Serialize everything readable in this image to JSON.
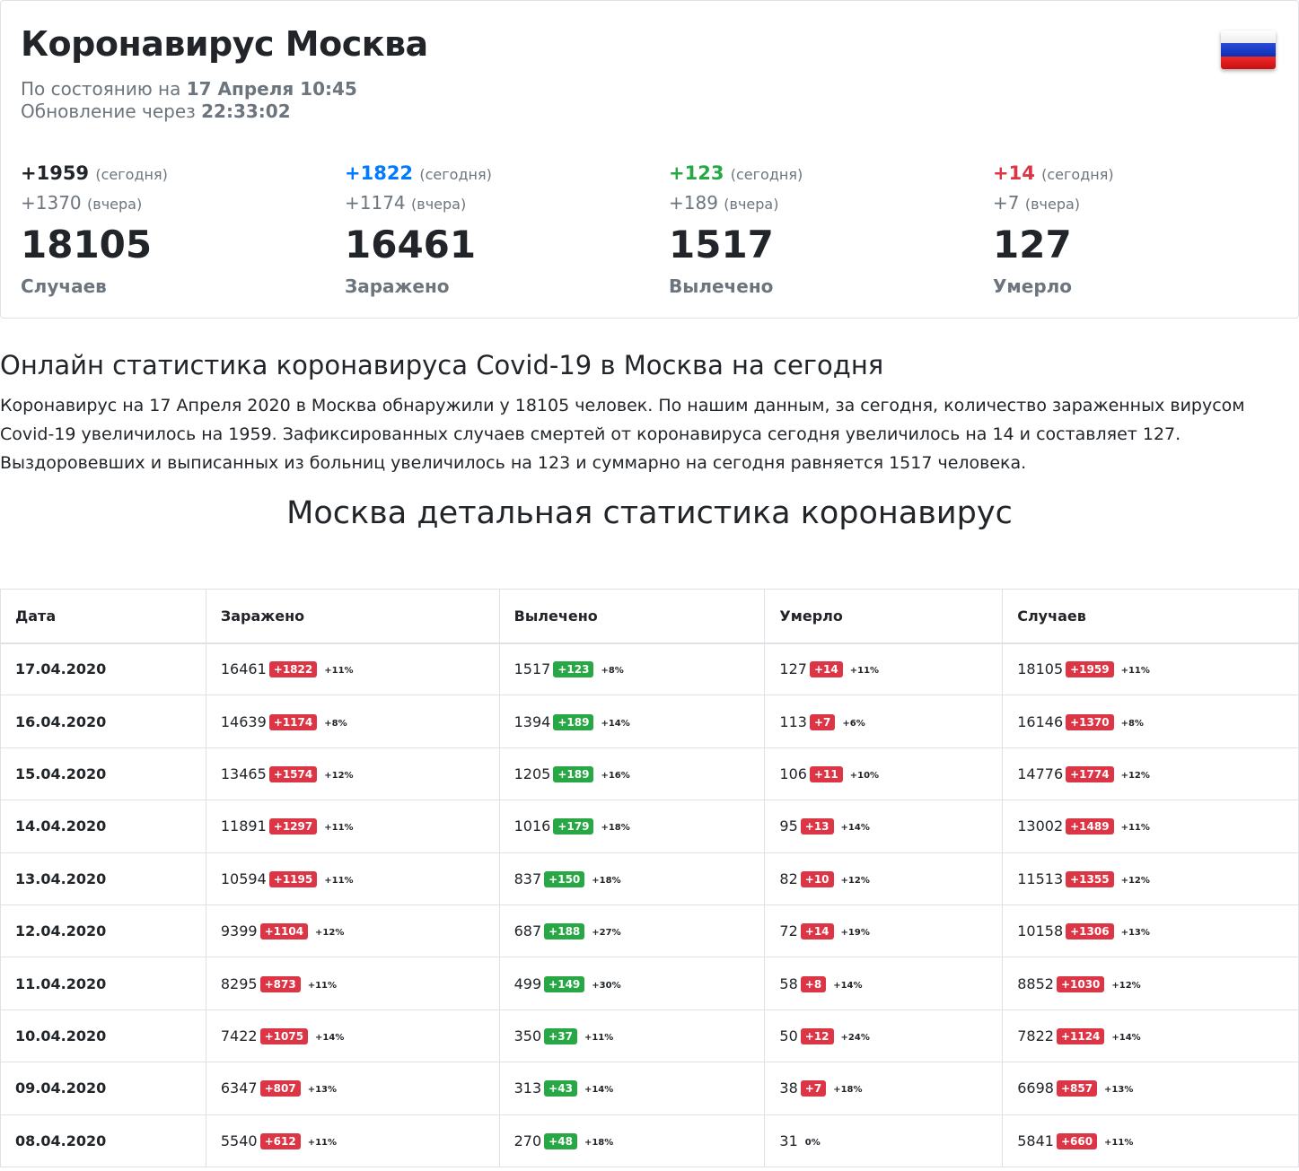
{
  "header": {
    "title": "Коронавирус Москва",
    "status_prefix": "По состоянию на",
    "status_date": "17 Апреля 10:45",
    "update_prefix": "Обновление через",
    "update_timer": "22:33:02",
    "flag_icon": "russia-flag-icon"
  },
  "stats": [
    {
      "today": "+1959",
      "today_label": "(сегодня)",
      "yesterday": "+1370",
      "yesterday_label": "(вчера)",
      "total": "18105",
      "name": "Случаев",
      "color": "#212529"
    },
    {
      "today": "+1822",
      "today_label": "(сегодня)",
      "yesterday": "+1174",
      "yesterday_label": "(вчера)",
      "total": "16461",
      "name": "Заражено",
      "color": "#007bff"
    },
    {
      "today": "+123",
      "today_label": "(сегодня)",
      "yesterday": "+189",
      "yesterday_label": "(вчера)",
      "total": "1517",
      "name": "Вылечено",
      "color": "#28a745"
    },
    {
      "today": "+14",
      "today_label": "(сегодня)",
      "yesterday": "+7",
      "yesterday_label": "(вчера)",
      "total": "127",
      "name": "Умерло",
      "color": "#dc3545"
    }
  ],
  "online": {
    "title": "Онлайн статистика коронавируса Covid-19 в Москва на сегодня",
    "text": "Коронавирус на 17 Апреля 2020 в Москва обнаружили у 18105 человек. По нашим данным, за сегодня, количество зараженных вирусом Covid-19 увеличилось на 1959. Зафиксированных случаев смертей от коронавируса сегодня увеличилось на 14 и составляет 127. Выздоровевших и выписанных из больниц увеличилось на 123 и суммарно на сегодня равняется 1517 человека."
  },
  "detail_title": "Москва детальная статистика коронавирус",
  "table": {
    "headers": [
      "Дата",
      "Заражено",
      "Вылечено",
      "Умерло",
      "Случаев"
    ],
    "rows": [
      {
        "date": "17.04.2020",
        "cells": [
          {
            "v": "16461",
            "d": "+1822",
            "p": "+11%",
            "c": "red"
          },
          {
            "v": "1517",
            "d": "+123",
            "p": "+8%",
            "c": "green"
          },
          {
            "v": "127",
            "d": "+14",
            "p": "+11%",
            "c": "red"
          },
          {
            "v": "18105",
            "d": "+1959",
            "p": "+11%",
            "c": "red"
          }
        ]
      },
      {
        "date": "16.04.2020",
        "cells": [
          {
            "v": "14639",
            "d": "+1174",
            "p": "+8%",
            "c": "red"
          },
          {
            "v": "1394",
            "d": "+189",
            "p": "+14%",
            "c": "green"
          },
          {
            "v": "113",
            "d": "+7",
            "p": "+6%",
            "c": "red"
          },
          {
            "v": "16146",
            "d": "+1370",
            "p": "+8%",
            "c": "red"
          }
        ]
      },
      {
        "date": "15.04.2020",
        "cells": [
          {
            "v": "13465",
            "d": "+1574",
            "p": "+12%",
            "c": "red"
          },
          {
            "v": "1205",
            "d": "+189",
            "p": "+16%",
            "c": "green"
          },
          {
            "v": "106",
            "d": "+11",
            "p": "+10%",
            "c": "red"
          },
          {
            "v": "14776",
            "d": "+1774",
            "p": "+12%",
            "c": "red"
          }
        ]
      },
      {
        "date": "14.04.2020",
        "cells": [
          {
            "v": "11891",
            "d": "+1297",
            "p": "+11%",
            "c": "red"
          },
          {
            "v": "1016",
            "d": "+179",
            "p": "+18%",
            "c": "green"
          },
          {
            "v": "95",
            "d": "+13",
            "p": "+14%",
            "c": "red"
          },
          {
            "v": "13002",
            "d": "+1489",
            "p": "+11%",
            "c": "red"
          }
        ]
      },
      {
        "date": "13.04.2020",
        "cells": [
          {
            "v": "10594",
            "d": "+1195",
            "p": "+11%",
            "c": "red"
          },
          {
            "v": "837",
            "d": "+150",
            "p": "+18%",
            "c": "green"
          },
          {
            "v": "82",
            "d": "+10",
            "p": "+12%",
            "c": "red"
          },
          {
            "v": "11513",
            "d": "+1355",
            "p": "+12%",
            "c": "red"
          }
        ]
      },
      {
        "date": "12.04.2020",
        "cells": [
          {
            "v": "9399",
            "d": "+1104",
            "p": "+12%",
            "c": "red"
          },
          {
            "v": "687",
            "d": "+188",
            "p": "+27%",
            "c": "green"
          },
          {
            "v": "72",
            "d": "+14",
            "p": "+19%",
            "c": "red"
          },
          {
            "v": "10158",
            "d": "+1306",
            "p": "+13%",
            "c": "red"
          }
        ]
      },
      {
        "date": "11.04.2020",
        "cells": [
          {
            "v": "8295",
            "d": "+873",
            "p": "+11%",
            "c": "red"
          },
          {
            "v": "499",
            "d": "+149",
            "p": "+30%",
            "c": "green"
          },
          {
            "v": "58",
            "d": "+8",
            "p": "+14%",
            "c": "red"
          },
          {
            "v": "8852",
            "d": "+1030",
            "p": "+12%",
            "c": "red"
          }
        ]
      },
      {
        "date": "10.04.2020",
        "cells": [
          {
            "v": "7422",
            "d": "+1075",
            "p": "+14%",
            "c": "red"
          },
          {
            "v": "350",
            "d": "+37",
            "p": "+11%",
            "c": "green"
          },
          {
            "v": "50",
            "d": "+12",
            "p": "+24%",
            "c": "red"
          },
          {
            "v": "7822",
            "d": "+1124",
            "p": "+14%",
            "c": "red"
          }
        ]
      },
      {
        "date": "09.04.2020",
        "cells": [
          {
            "v": "6347",
            "d": "+807",
            "p": "+13%",
            "c": "red"
          },
          {
            "v": "313",
            "d": "+43",
            "p": "+14%",
            "c": "green"
          },
          {
            "v": "38",
            "d": "+7",
            "p": "+18%",
            "c": "red"
          },
          {
            "v": "6698",
            "d": "+857",
            "p": "+13%",
            "c": "red"
          }
        ]
      },
      {
        "date": "08.04.2020",
        "cells": [
          {
            "v": "5540",
            "d": "+612",
            "p": "+11%",
            "c": "red"
          },
          {
            "v": "270",
            "d": "+48",
            "p": "+18%",
            "c": "green"
          },
          {
            "v": "31",
            "d": "",
            "p": "0%",
            "c": "red"
          },
          {
            "v": "5841",
            "d": "+660",
            "p": "+11%",
            "c": "red"
          }
        ]
      }
    ]
  }
}
